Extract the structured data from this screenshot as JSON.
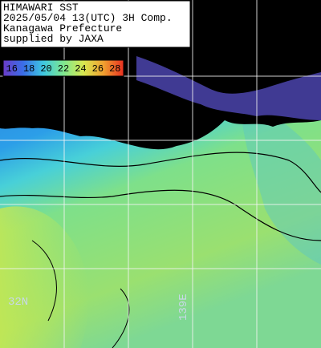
{
  "header": {
    "lines": [
      "HIMAWARI SST",
      "2025/05/04 13(UTC) 3H Comp.",
      "Kanagawa Prefecture",
      "supplied by JAXA"
    ]
  },
  "colorbar": {
    "ticks": [
      16,
      18,
      20,
      22,
      24,
      26,
      28
    ],
    "colors": [
      "#6a3cc8",
      "#3a6ee8",
      "#3ec8e0",
      "#7ee890",
      "#d8e850",
      "#f0a030",
      "#e83020"
    ]
  },
  "map": {
    "lat_label": "32N",
    "lon_label": "139E"
  }
}
